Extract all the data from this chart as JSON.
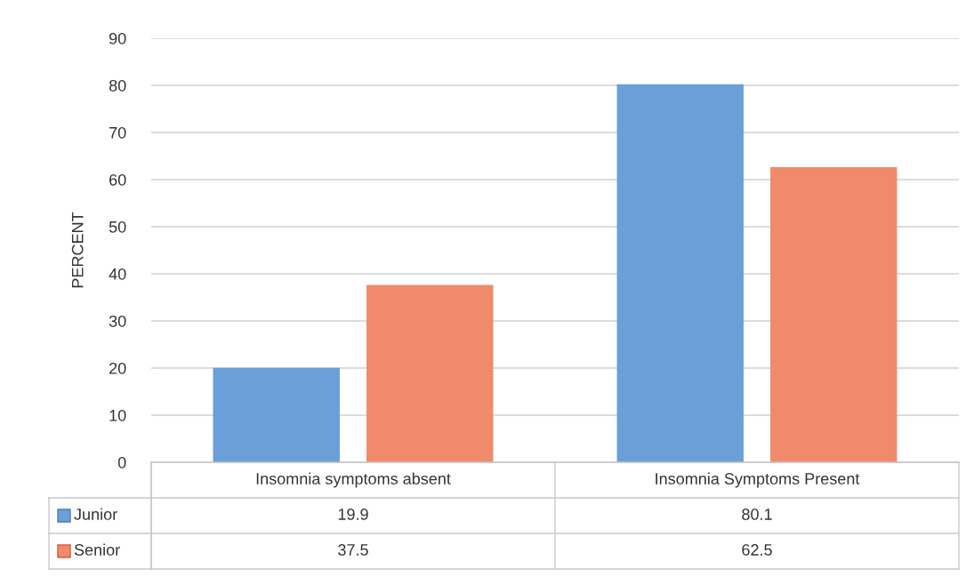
{
  "chart_data": {
    "type": "bar",
    "ylabel": "PERCENT",
    "categories": [
      "Insomnia symptoms absent",
      "Insomnia Symptoms Present"
    ],
    "series": [
      {
        "name": "Junior",
        "color": "#6a9fd8",
        "values": [
          19.9,
          80.1
        ]
      },
      {
        "name": "Senior",
        "color": "#f08a6a",
        "values": [
          37.5,
          62.5
        ]
      }
    ],
    "ylim": [
      0,
      90
    ],
    "yticks": [
      0,
      10,
      20,
      30,
      40,
      50,
      60,
      70,
      80,
      90
    ],
    "grid": "y",
    "legend": "bottom",
    "data_labels": true
  }
}
